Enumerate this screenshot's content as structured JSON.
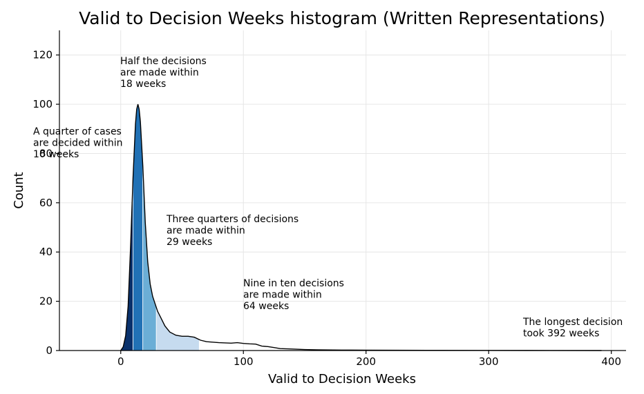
{
  "chart_data": {
    "type": "area",
    "title": "Valid to Decision Weeks histogram (Written Representations)",
    "xlabel": "Valid to Decision Weeks",
    "ylabel": "Count",
    "xlim": [
      -50,
      412
    ],
    "ylim": [
      0,
      130
    ],
    "xticks": [
      0,
      100,
      200,
      300,
      400
    ],
    "yticks": [
      0,
      20,
      40,
      60,
      80,
      100,
      120
    ],
    "grid": true,
    "curve": {
      "x": [
        0,
        2,
        4,
        6,
        8,
        10,
        12,
        13,
        14,
        15,
        16,
        18,
        20,
        22,
        24,
        26,
        28,
        30,
        33,
        36,
        40,
        45,
        50,
        55,
        60,
        65,
        70,
        80,
        90,
        95,
        100,
        105,
        110,
        115,
        120,
        125,
        130,
        140,
        150,
        160,
        180,
        200,
        250,
        300,
        350,
        392
      ],
      "y": [
        0,
        1.5,
        6,
        18,
        42,
        70,
        92,
        98,
        100,
        98,
        93,
        75,
        52,
        36,
        27,
        22,
        19,
        16,
        13,
        10,
        7.5,
        6.2,
        5.8,
        5.8,
        5.4,
        4.2,
        3.6,
        3.2,
        3.0,
        3.2,
        2.9,
        2.7,
        2.6,
        1.8,
        1.6,
        1.2,
        0.8,
        0.6,
        0.4,
        0.3,
        0.2,
        0.15,
        0.1,
        0.05,
        0.03,
        0
      ]
    },
    "bands": [
      {
        "from": 0,
        "to": 10,
        "color": "#08306b"
      },
      {
        "from": 10,
        "to": 18,
        "color": "#2171b5"
      },
      {
        "from": 18,
        "to": 29,
        "color": "#6baed6"
      },
      {
        "from": 29,
        "to": 64,
        "color": "#c6dbef"
      }
    ],
    "annotations": [
      {
        "lines": [
          "A quarter of cases",
          "are decided within",
          "10 weeks"
        ]
      },
      {
        "lines": [
          "Half the decisions",
          "are made within",
          "18 weeks"
        ]
      },
      {
        "lines": [
          "Three quarters of decisions",
          "are made within",
          "29 weeks"
        ]
      },
      {
        "lines": [
          "Nine in ten decisions",
          "are made within",
          "64 weeks"
        ]
      },
      {
        "lines": [
          "The longest decision",
          "took 392 weeks"
        ]
      }
    ]
  }
}
